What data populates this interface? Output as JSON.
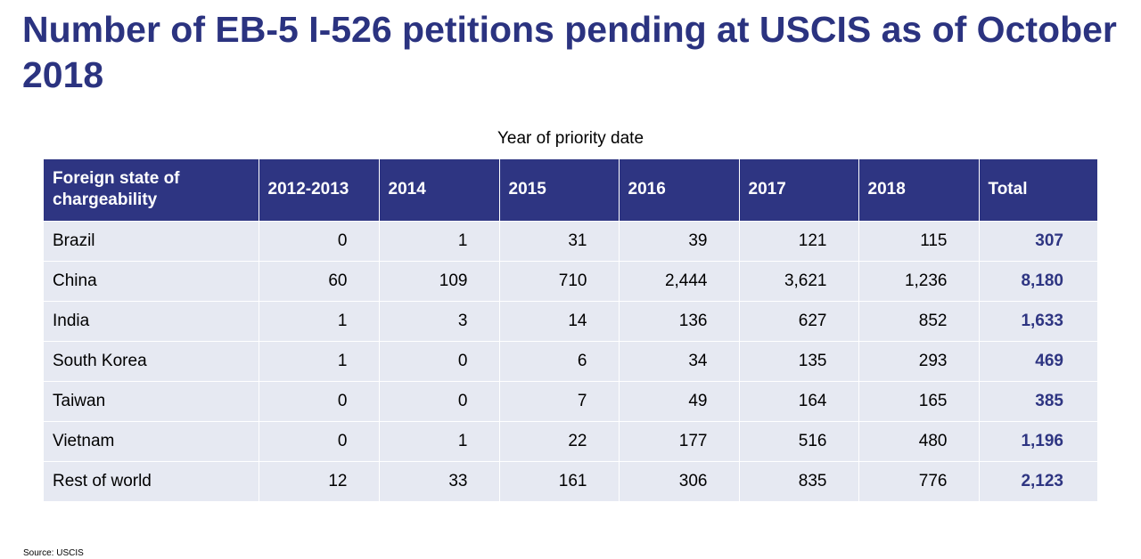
{
  "title": "Number of EB-5 I-526 petitions pending at USCIS as of October 2018",
  "subtitle": "Year of priority date",
  "source": "Source: USCIS",
  "colors": {
    "header_bg": "#2e3582",
    "row_bg": "#e6e9f2",
    "title": "#2b3380",
    "total_text": "#2e3582"
  },
  "chart_data": {
    "type": "table",
    "title": "Number of EB-5 I-526 petitions pending at USCIS as of October 2018",
    "subtitle": "Year of priority date",
    "columns": [
      "Foreign state of chargeability",
      "2012-2013",
      "2014",
      "2015",
      "2016",
      "2017",
      "2018",
      "Total"
    ],
    "rows": [
      [
        "Brazil",
        "0",
        "1",
        "31",
        "39",
        "121",
        "115",
        "307"
      ],
      [
        "China",
        "60",
        "109",
        "710",
        "2,444",
        "3,621",
        "1,236",
        "8,180"
      ],
      [
        "India",
        "1",
        "3",
        "14",
        "136",
        "627",
        "852",
        "1,633"
      ],
      [
        "South Korea",
        "1",
        "0",
        "6",
        "34",
        "135",
        "293",
        "469"
      ],
      [
        "Taiwan",
        "0",
        "0",
        "7",
        "49",
        "164",
        "165",
        "385"
      ],
      [
        "Vietnam",
        "0",
        "1",
        "22",
        "177",
        "516",
        "480",
        "1,196"
      ],
      [
        "Rest of world",
        "12",
        "33",
        "161",
        "306",
        "835",
        "776",
        "2,123"
      ]
    ],
    "source": "Source: USCIS"
  }
}
